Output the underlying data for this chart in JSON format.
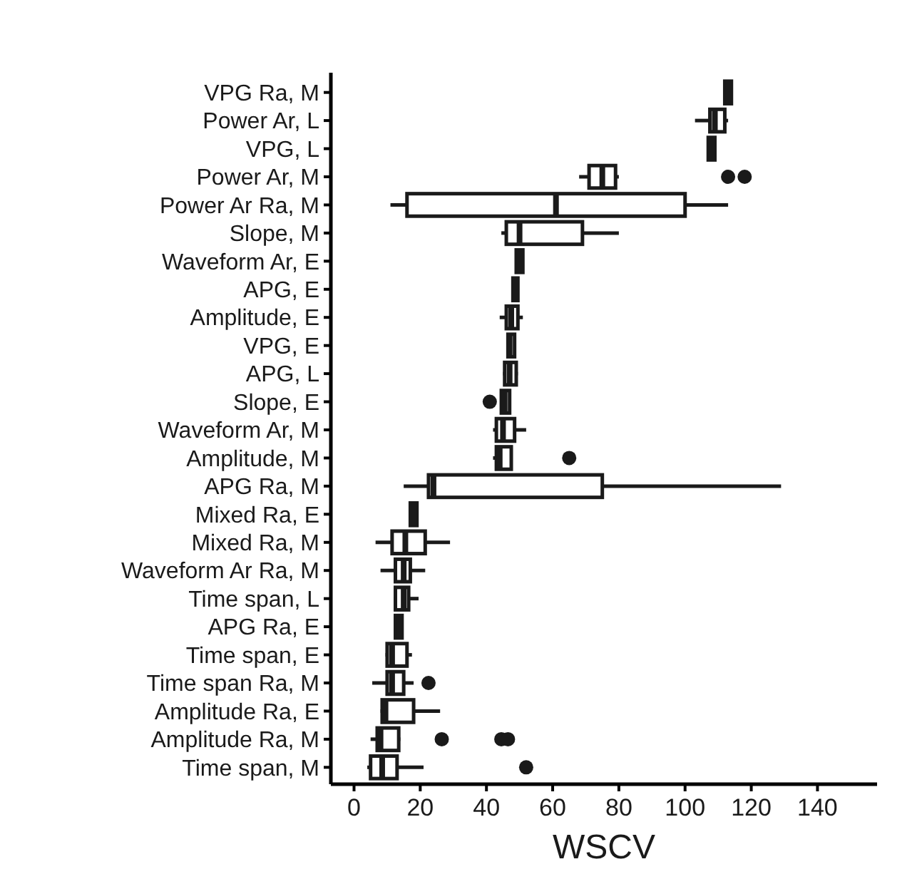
{
  "chart_data": {
    "type": "box",
    "orientation": "horizontal",
    "xlabel": "WSCV",
    "categories": [
      "VPG Ra, M",
      "Power Ar, L",
      "VPG, L",
      "Power Ar, M",
      "Power Ar Ra, M",
      "Slope, M",
      "Waveform Ar, E",
      "APG, E",
      "Amplitude, E",
      "VPG, E",
      "APG, L",
      "Slope, E",
      "Waveform Ar, M",
      "Amplitude, M",
      "APG Ra, M",
      "Mixed Ra, E",
      "Mixed Ra, M",
      "Waveform Ar Ra, M",
      "Time span, L",
      "APG Ra, E",
      "Time span, E",
      "Time span Ra, M",
      "Amplitude Ra, E",
      "Amplitude Ra, M",
      "Time span, M"
    ],
    "boxes": [
      {
        "low": 112,
        "q1": 112,
        "median": 113,
        "q3": 114,
        "high": 114
      },
      {
        "low": 103,
        "q1": 107.5,
        "median": 109,
        "q3": 112,
        "high": 113
      },
      {
        "low": 107,
        "q1": 107,
        "median": 108,
        "q3": 109,
        "high": 109
      },
      {
        "low": 68,
        "q1": 71,
        "median": 75,
        "q3": 79,
        "high": 80,
        "outliers": [
          113,
          118
        ]
      },
      {
        "low": 11,
        "q1": 16,
        "median": 61,
        "q3": 100,
        "high": 113
      },
      {
        "low": 44.5,
        "q1": 46,
        "median": 50,
        "q3": 69,
        "high": 80
      },
      {
        "low": 49,
        "q1": 49,
        "median": 50,
        "q3": 51,
        "high": 51
      },
      {
        "low": 48,
        "q1": 48,
        "median": 49,
        "q3": 49.5,
        "high": 49.5
      },
      {
        "low": 44,
        "q1": 46,
        "median": 47.5,
        "q3": 49.5,
        "high": 51
      },
      {
        "low": 46.5,
        "q1": 46.5,
        "median": 47,
        "q3": 48.5,
        "high": 48.5
      },
      {
        "low": 45,
        "q1": 45.5,
        "median": 47,
        "q3": 49,
        "high": 49.5
      },
      {
        "low": 44.5,
        "q1": 44.5,
        "median": 45.5,
        "q3": 47,
        "high": 47,
        "outliers": [
          41
        ]
      },
      {
        "low": 42,
        "q1": 43,
        "median": 45,
        "q3": 48.5,
        "high": 52
      },
      {
        "low": 42,
        "q1": 43,
        "median": 44,
        "q3": 47.5,
        "high": 47.5,
        "outliers": [
          65
        ]
      },
      {
        "low": 15,
        "q1": 22.5,
        "median": 24,
        "q3": 75,
        "high": 129
      },
      {
        "low": 17,
        "q1": 17,
        "median": 18,
        "q3": 19,
        "high": 19
      },
      {
        "low": 6.5,
        "q1": 11.5,
        "median": 15.5,
        "q3": 21.5,
        "high": 29
      },
      {
        "low": 8,
        "q1": 12.5,
        "median": 15,
        "q3": 17,
        "high": 21.5
      },
      {
        "low": 12,
        "q1": 12.5,
        "median": 15,
        "q3": 16.5,
        "high": 19.5
      },
      {
        "low": 12.5,
        "q1": 12.5,
        "median": 13.5,
        "q3": 14.5,
        "high": 14.5
      },
      {
        "low": 9.5,
        "q1": 10,
        "median": 11.5,
        "q3": 16,
        "high": 17.5
      },
      {
        "low": 5.5,
        "q1": 10,
        "median": 11.5,
        "q3": 15,
        "high": 18,
        "outliers": [
          22.5
        ]
      },
      {
        "low": 8,
        "q1": 8.5,
        "median": 9.5,
        "q3": 18,
        "high": 26
      },
      {
        "low": 5,
        "q1": 7,
        "median": 8,
        "q3": 13.5,
        "high": 14,
        "outliers": [
          26.5,
          44.5,
          46.5
        ]
      },
      {
        "low": 4,
        "q1": 5,
        "median": 8.5,
        "q3": 13,
        "high": 21,
        "outliers": [
          52
        ]
      }
    ],
    "xlim": [
      -7,
      158
    ],
    "xticks": [
      0,
      20,
      40,
      60,
      80,
      100,
      120,
      140
    ],
    "grid": false
  }
}
